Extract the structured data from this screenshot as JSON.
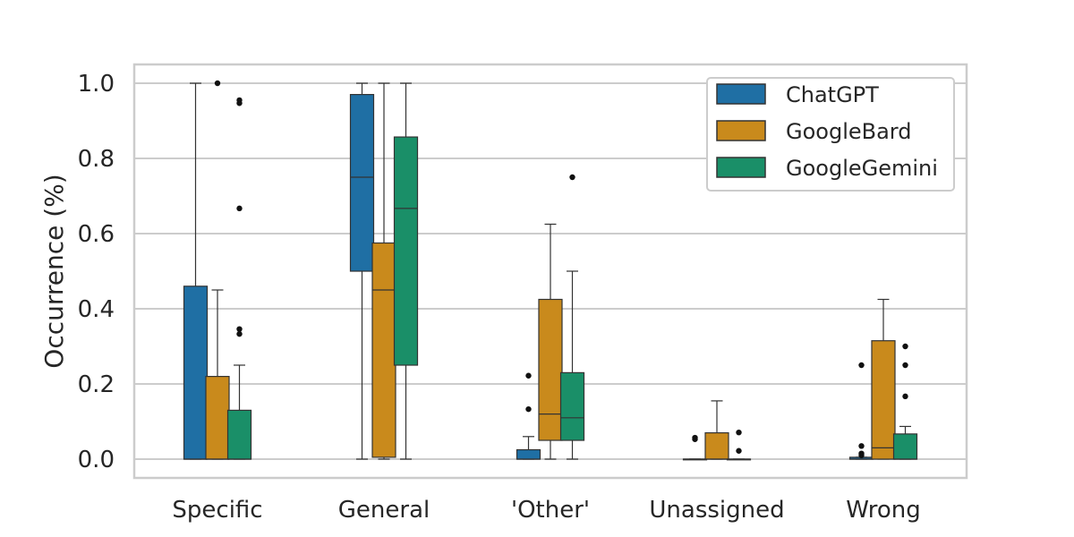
{
  "chart_data": {
    "type": "box",
    "title": "",
    "xlabel": "",
    "ylabel": "Occurrence (%)",
    "ylim": [
      -0.05,
      1.05
    ],
    "yticks": [
      "0.0",
      "0.2",
      "0.4",
      "0.6",
      "0.8",
      "1.0"
    ],
    "grid": true,
    "legend_position": "top-right",
    "categories": [
      "Specific",
      "General",
      "'Other'",
      "Unassigned",
      "Wrong"
    ],
    "series": [
      {
        "name": "ChatGPT",
        "color": "#1f6fa4",
        "boxes": [
          {
            "whislo": 0.0,
            "q1": 0.0,
            "med": 0.0,
            "q3": 0.46,
            "whishi": 1.0,
            "fliers": []
          },
          {
            "whislo": 0.0,
            "q1": 0.5,
            "med": 0.75,
            "q3": 0.97,
            "whishi": 1.0,
            "fliers": []
          },
          {
            "whislo": 0.0,
            "q1": 0.0,
            "med": 0.0,
            "q3": 0.025,
            "whishi": 0.06,
            "fliers": [
              0.133,
              0.222
            ]
          },
          {
            "whislo": 0.0,
            "q1": 0.0,
            "med": 0.0,
            "q3": 0.0,
            "whishi": 0.0,
            "fliers": [
              0.053,
              0.057
            ]
          },
          {
            "whislo": 0.0,
            "q1": 0.0,
            "med": 0.0,
            "q3": 0.005,
            "whishi": 0.005,
            "fliers": [
              0.01,
              0.015,
              0.035,
              0.25
            ]
          }
        ]
      },
      {
        "name": "GoogleBard",
        "color": "#c98a1c",
        "boxes": [
          {
            "whislo": 0.0,
            "q1": 0.0,
            "med": 0.0,
            "q3": 0.22,
            "whishi": 0.45,
            "fliers": [
              1.0
            ]
          },
          {
            "whislo": 0.0,
            "q1": 0.005,
            "med": 0.45,
            "q3": 0.575,
            "whishi": 1.0,
            "fliers": []
          },
          {
            "whislo": 0.0,
            "q1": 0.05,
            "med": 0.12,
            "q3": 0.425,
            "whishi": 0.625,
            "fliers": []
          },
          {
            "whislo": 0.0,
            "q1": 0.0,
            "med": 0.0,
            "q3": 0.07,
            "whishi": 0.155,
            "fliers": []
          },
          {
            "whislo": 0.0,
            "q1": 0.0,
            "med": 0.03,
            "q3": 0.315,
            "whishi": 0.425,
            "fliers": []
          }
        ]
      },
      {
        "name": "GoogleGemini",
        "color": "#1a8f68",
        "boxes": [
          {
            "whislo": 0.0,
            "q1": 0.0,
            "med": 0.0,
            "q3": 0.13,
            "whishi": 0.25,
            "fliers": [
              0.333,
              0.346,
              0.667,
              0.947,
              0.955
            ]
          },
          {
            "whislo": 0.0,
            "q1": 0.25,
            "med": 0.667,
            "q3": 0.857,
            "whishi": 1.0,
            "fliers": []
          },
          {
            "whislo": 0.0,
            "q1": 0.05,
            "med": 0.11,
            "q3": 0.23,
            "whishi": 0.5,
            "fliers": [
              0.75
            ]
          },
          {
            "whislo": 0.0,
            "q1": 0.0,
            "med": 0.0,
            "q3": 0.0,
            "whishi": 0.0,
            "fliers": [
              0.022,
              0.071
            ]
          },
          {
            "whislo": 0.0,
            "q1": 0.0,
            "med": 0.0,
            "q3": 0.067,
            "whishi": 0.087,
            "fliers": [
              0.167,
              0.25,
              0.3
            ]
          }
        ]
      }
    ]
  }
}
